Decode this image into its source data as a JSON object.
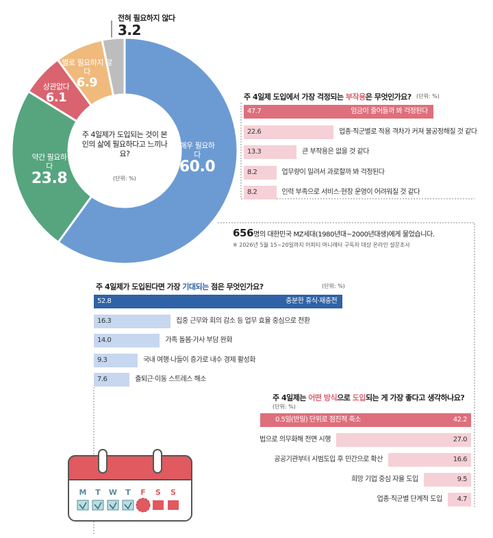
{
  "chart_data": [
    {
      "type": "pie",
      "title": "주 4일제가 도입되는 것이 본인의 삶에 필요하다고 느끼나요?",
      "unit": "(단위: %)",
      "categories": [
        "매우 필요하다",
        "약간 필요하다",
        "상관없다",
        "별로 필요하지 않다",
        "전혀 필요하지 않다"
      ],
      "values": [
        60.0,
        23.8,
        6.1,
        6.9,
        3.2
      ],
      "value_labels": [
        "60.0",
        "23.8",
        "6.1",
        "6.9",
        "3.2"
      ],
      "colors": [
        "#6c9bd3",
        "#56a57f",
        "#d9636f",
        "#f0ba7c",
        "#bdbdbd"
      ]
    },
    {
      "type": "bar",
      "orientation": "left",
      "title": "주 4일제 도입에서 가장 걱정되는 부작용은 무엇인가요?",
      "title_highlight": [
        "부작용"
      ],
      "highlight_color": "#d9636f",
      "unit": "(단위: %)",
      "categories": [
        "임금이 줄어들까 봐 걱정된다",
        "업종·직군별로 적용 격차가 커져 불공정해질 것 같다",
        "큰 부작용은 없을 것 같다",
        "업무량이 밀려서 과로할까 봐 걱정된다",
        "인력 부족으로 서비스·현장 운영이 어려워질 것 같다"
      ],
      "values": [
        47.7,
        22.6,
        13.3,
        8.2,
        8.2
      ],
      "value_labels": [
        "47.7",
        "22.6",
        "13.3",
        "8.2",
        "8.2"
      ],
      "colors": [
        "#de6f7c",
        "#f6d0d7",
        "#f6d0d7",
        "#f6d0d7",
        "#f6d0d7"
      ]
    },
    {
      "type": "bar",
      "orientation": "left",
      "title": "주 4일제가 도입된다면 가장 기대되는 점은 무엇인가요?",
      "title_highlight": [
        "기대되는"
      ],
      "highlight_color": "#2f62a6",
      "unit": "(단위: %)",
      "categories": [
        "충분한 휴식·재충전",
        "집중 근무와 회의 감소 등 업무 효율 중심으로 전환",
        "가족 돌봄·가사 부담 완화",
        "국내 여행·나들이 증가로 내수 경제 활성화",
        "출퇴근·이동 스트레스 해소"
      ],
      "values": [
        52.8,
        16.3,
        14.0,
        9.3,
        7.6
      ],
      "value_labels": [
        "52.8",
        "16.3",
        "14.0",
        "9.3",
        "7.6"
      ],
      "colors": [
        "#2f62a6",
        "#c6d7ef",
        "#c6d7ef",
        "#c6d7ef",
        "#c6d7ef"
      ]
    },
    {
      "type": "bar",
      "orientation": "right",
      "title": "주 4일제는 어떤 방식으로 도입되는 게 가장 좋다고 생각하나요?",
      "title_highlight": [
        "어떤 방식",
        "도입"
      ],
      "highlight_color": "#d9636f",
      "unit": "(단위: %)",
      "categories": [
        "0.5일(반일) 단위로 점진적 축소",
        "법으로 의무화해 전면 시행",
        "공공기관부터 시범도입 후 민간으로 확산",
        "희망 기업 중심 자율 도입",
        "업종·직군별 단계적 도입"
      ],
      "values": [
        42.2,
        27.0,
        16.6,
        9.5,
        4.7
      ],
      "value_labels": [
        "42.2",
        "27.0",
        "16.6",
        "9.5",
        "4.7"
      ],
      "colors": [
        "#de6f7c",
        "#f6d0d7",
        "#f6d0d7",
        "#f6d0d7",
        "#f6d0d7"
      ]
    }
  ],
  "survey": {
    "respondents": "656",
    "respondents_text": "명의 대한민국 MZ세대(1980년대~2000년대생)에게 물었습니다.",
    "note": "※ 2026년 5월 15~20일까지 어피티 머니레터 구독자 대상 온라인 설문조사"
  },
  "calendar_days": [
    "M",
    "T",
    "W",
    "T",
    "F",
    "S",
    "S"
  ]
}
